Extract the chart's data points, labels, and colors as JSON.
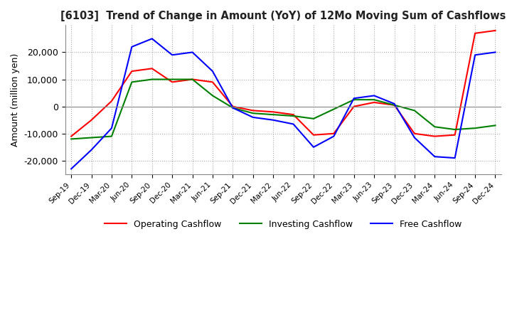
{
  "title": "[6103]  Trend of Change in Amount (YoY) of 12Mo Moving Sum of Cashflows",
  "ylabel": "Amount (million yen)",
  "x_labels": [
    "Sep-19",
    "Dec-19",
    "Mar-20",
    "Jun-20",
    "Sep-20",
    "Dec-20",
    "Mar-21",
    "Jun-21",
    "Sep-21",
    "Dec-21",
    "Mar-22",
    "Jun-22",
    "Sep-22",
    "Dec-22",
    "Mar-23",
    "Jun-23",
    "Sep-23",
    "Dec-23",
    "Mar-24",
    "Jun-24",
    "Sep-24",
    "Dec-24"
  ],
  "operating": [
    -11000,
    -5000,
    2000,
    13000,
    14000,
    9000,
    10000,
    9000,
    0,
    -1500,
    -2000,
    -3000,
    -10500,
    -10000,
    0,
    1500,
    500,
    -10000,
    -11000,
    -10500,
    27000,
    28000
  ],
  "investing": [
    -12000,
    -11500,
    -11000,
    9000,
    10000,
    10000,
    10000,
    4000,
    -500,
    -2500,
    -3000,
    -3500,
    -4500,
    -1000,
    2500,
    2500,
    500,
    -1500,
    -7500,
    -8500,
    -8000,
    -7000
  ],
  "free": [
    -23000,
    -16000,
    -8000,
    22000,
    25000,
    19000,
    20000,
    13000,
    -500,
    -4000,
    -5000,
    -6500,
    -15000,
    -11000,
    3000,
    4000,
    1000,
    -11500,
    -18500,
    -19000,
    19000,
    20000
  ],
  "ylim": [
    -25000,
    30000
  ],
  "yticks": [
    -20000,
    -10000,
    0,
    10000,
    20000
  ],
  "colors": {
    "operating": "#ff0000",
    "investing": "#008000",
    "free": "#0000ff"
  },
  "legend_labels": [
    "Operating Cashflow",
    "Investing Cashflow",
    "Free Cashflow"
  ],
  "grid_color": "#aaaaaa",
  "background_color": "#ffffff"
}
